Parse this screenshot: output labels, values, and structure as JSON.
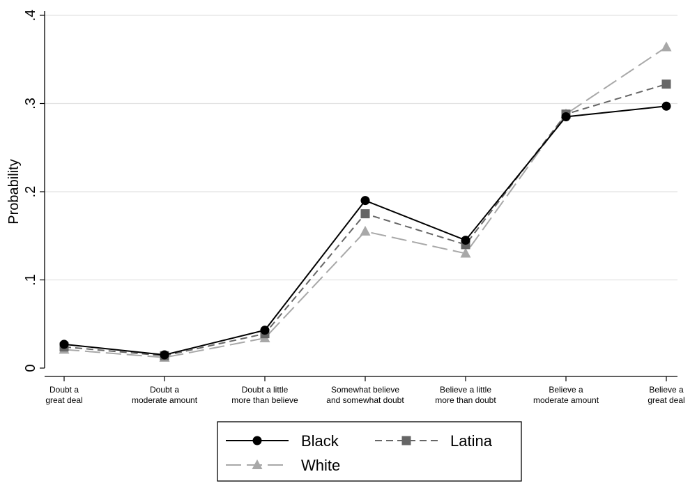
{
  "chart_data": {
    "type": "line",
    "title": "",
    "xlabel": "",
    "ylabel": "Probability",
    "ylim": [
      0,
      0.4
    ],
    "yticks": [
      {
        "value": 0,
        "label": "0"
      },
      {
        "value": 0.1,
        "label": ".1"
      },
      {
        "value": 0.2,
        "label": ".2"
      },
      {
        "value": 0.3,
        "label": ".3"
      },
      {
        "value": 0.4,
        "label": ".4"
      }
    ],
    "categories": [
      [
        "Doubt a",
        "great deal"
      ],
      [
        "Doubt a",
        "moderate amount"
      ],
      [
        "Doubt a little",
        "more than believe"
      ],
      [
        "Somewhat believe",
        "and somewhat doubt"
      ],
      [
        "Believe a little",
        "more than doubt"
      ],
      [
        "Believe a",
        "moderate amount"
      ],
      [
        "Believe a",
        "great deal"
      ]
    ],
    "grid": true,
    "legend_position": "bottom",
    "series": [
      {
        "name": "Black",
        "values": [
          0.027,
          0.015,
          0.043,
          0.19,
          0.145,
          0.285,
          0.297
        ],
        "color": "#000000",
        "marker": "circle",
        "dash": "solid"
      },
      {
        "name": "Latina",
        "values": [
          0.024,
          0.014,
          0.039,
          0.175,
          0.14,
          0.288,
          0.322
        ],
        "color": "#666666",
        "marker": "square",
        "dash": "short"
      },
      {
        "name": "White",
        "values": [
          0.021,
          0.012,
          0.034,
          0.155,
          0.13,
          0.288,
          0.364
        ],
        "color": "#a8a8a8",
        "marker": "triangle",
        "dash": "long"
      }
    ]
  }
}
